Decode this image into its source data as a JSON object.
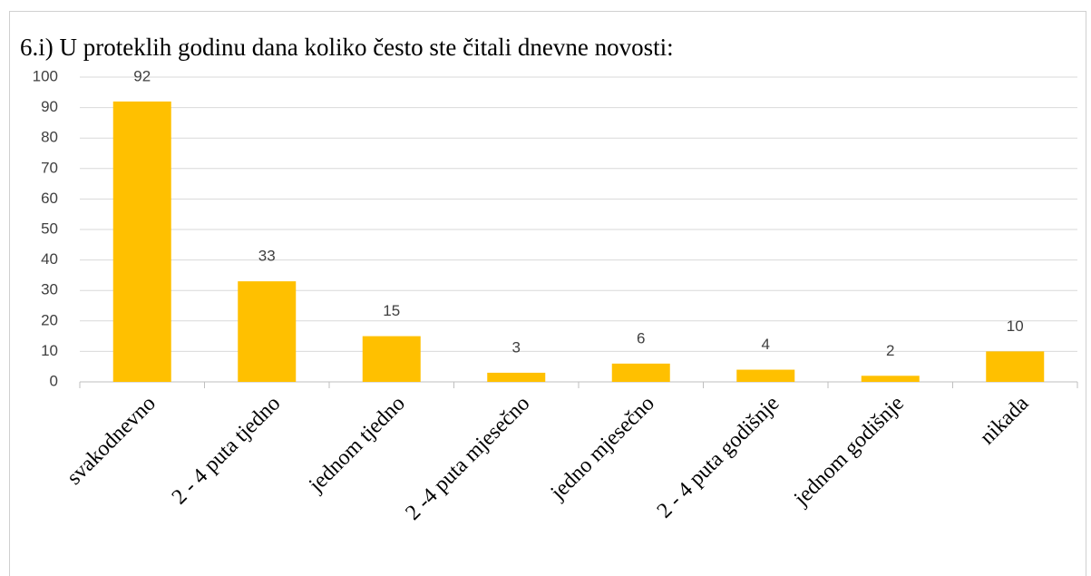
{
  "chart_data": {
    "type": "bar",
    "title": "6.i) U proteklih godinu dana koliko često ste čitali dnevne novosti:",
    "categories": [
      "svakodnevno",
      "2 - 4 puta tjedno",
      "jednom tjedno",
      "2 -4 puta mjesečno",
      "jedno mjesečno",
      "2 - 4 puta godišnje",
      "jednom godišnje",
      "nikada"
    ],
    "values": [
      92,
      33,
      15,
      3,
      6,
      4,
      2,
      10
    ],
    "color": "#ffc000",
    "ylim": [
      0,
      100
    ],
    "yticks": [
      0,
      10,
      20,
      30,
      40,
      50,
      60,
      70,
      80,
      90,
      100
    ],
    "grid": true
  }
}
